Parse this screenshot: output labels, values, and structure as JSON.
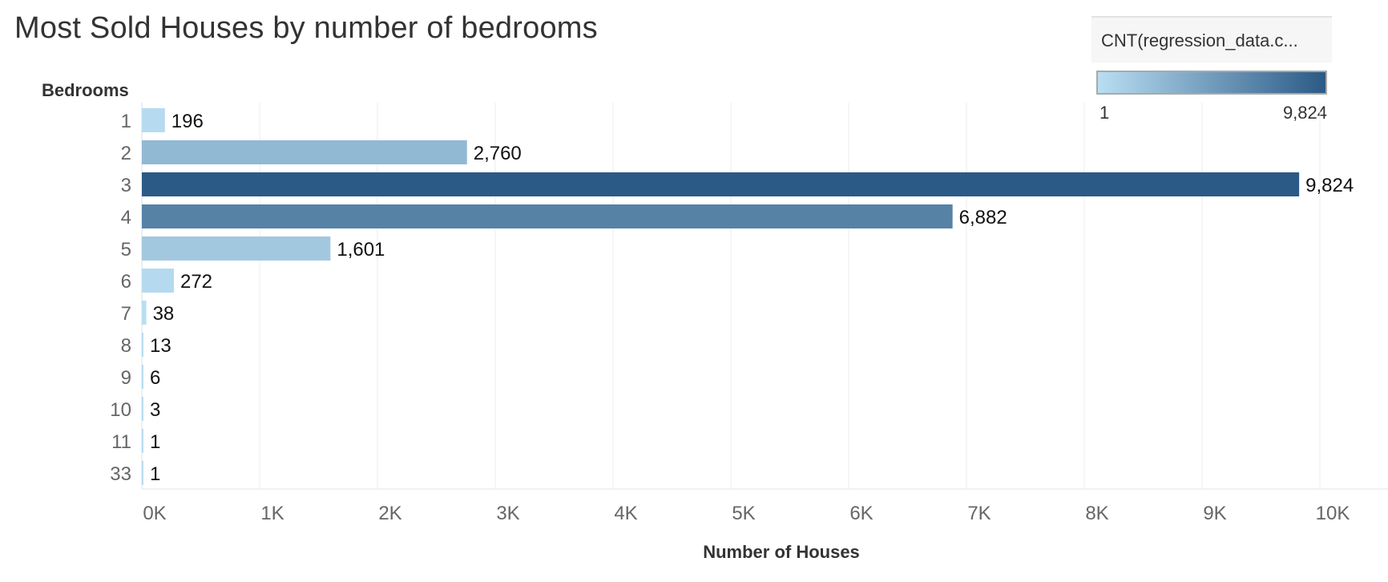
{
  "title": "Most Sold Houses by number of bedrooms",
  "legend": {
    "title": "CNT(regression_data.c...",
    "min_label": "1",
    "max_label": "9,824",
    "color_low": "#b9def2",
    "color_high": "#2b5a86"
  },
  "chart_data": {
    "type": "bar",
    "orientation": "horizontal",
    "title": "Most Sold Houses by number of bedrooms",
    "ylabel": "Bedrooms",
    "xlabel": "Number of Houses",
    "categories": [
      "1",
      "2",
      "3",
      "4",
      "5",
      "6",
      "7",
      "8",
      "9",
      "10",
      "11",
      "33"
    ],
    "values": [
      196,
      2760,
      9824,
      6882,
      1601,
      272,
      38,
      13,
      6,
      3,
      1,
      1
    ],
    "value_labels": [
      "196",
      "2,760",
      "9,824",
      "6,882",
      "1,601",
      "272",
      "38",
      "13",
      "6",
      "3",
      "1",
      "1"
    ],
    "x_ticks": [
      "0K",
      "1K",
      "2K",
      "3K",
      "4K",
      "5K",
      "6K",
      "7K",
      "8K",
      "9K",
      "10K"
    ],
    "x_tick_values": [
      0,
      1000,
      2000,
      3000,
      4000,
      5000,
      6000,
      7000,
      8000,
      9000,
      10000
    ],
    "xlim": [
      0,
      10500
    ],
    "grid": "vertical",
    "color_scale": {
      "min": 1,
      "max": 9824,
      "low": "#b9def2",
      "high": "#2b5a86"
    }
  }
}
